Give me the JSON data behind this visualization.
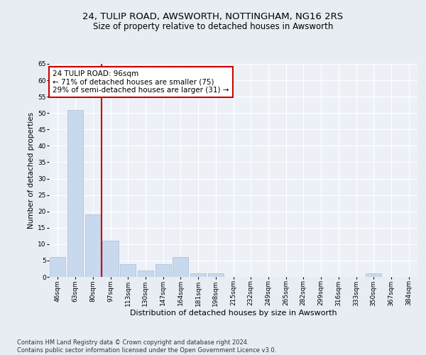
{
  "title1": "24, TULIP ROAD, AWSWORTH, NOTTINGHAM, NG16 2RS",
  "title2": "Size of property relative to detached houses in Awsworth",
  "xlabel": "Distribution of detached houses by size in Awsworth",
  "ylabel": "Number of detached properties",
  "categories": [
    "46sqm",
    "63sqm",
    "80sqm",
    "97sqm",
    "113sqm",
    "130sqm",
    "147sqm",
    "164sqm",
    "181sqm",
    "198sqm",
    "215sqm",
    "232sqm",
    "249sqm",
    "265sqm",
    "282sqm",
    "299sqm",
    "316sqm",
    "333sqm",
    "350sqm",
    "367sqm",
    "384sqm"
  ],
  "values": [
    6,
    51,
    19,
    11,
    4,
    2,
    4,
    6,
    1,
    1,
    0,
    0,
    0,
    0,
    0,
    0,
    0,
    0,
    1,
    0,
    0
  ],
  "bar_color": "#c8d8ed",
  "bar_edge_color": "#a8bcd8",
  "vline_index": 2.5,
  "vline_color": "#cc0000",
  "annotation_text": "24 TULIP ROAD: 96sqm\n← 71% of detached houses are smaller (75)\n29% of semi-detached houses are larger (31) →",
  "annotation_box_color": "#ffffff",
  "annotation_box_edge": "#cc0000",
  "ylim": [
    0,
    65
  ],
  "yticks": [
    0,
    5,
    10,
    15,
    20,
    25,
    30,
    35,
    40,
    45,
    50,
    55,
    60,
    65
  ],
  "bg_color": "#e8edf4",
  "plot_bg_color": "#edf1f7",
  "footer": "Contains HM Land Registry data © Crown copyright and database right 2024.\nContains public sector information licensed under the Open Government Licence v3.0.",
  "title1_fontsize": 9.5,
  "title2_fontsize": 8.5,
  "xlabel_fontsize": 8,
  "ylabel_fontsize": 7.5,
  "tick_fontsize": 6.5,
  "annotation_fontsize": 7.5,
  "footer_fontsize": 6
}
